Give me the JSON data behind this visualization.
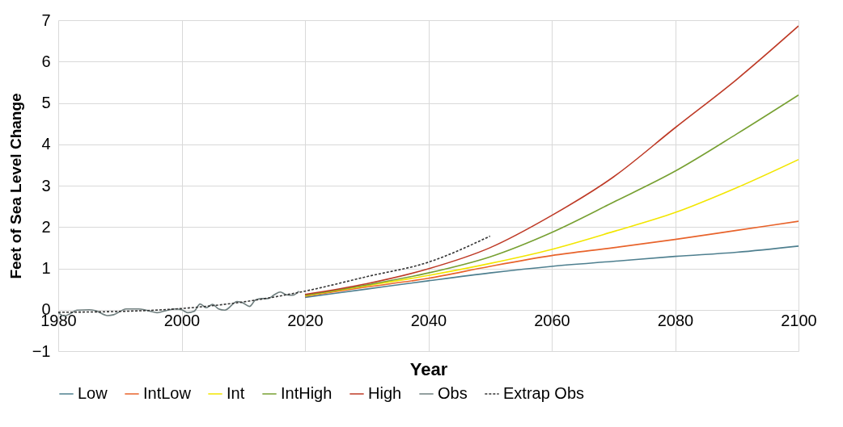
{
  "chart_data": {
    "type": "line",
    "xlabel": "Year",
    "ylabel": "Feet of Sea Level Change",
    "xlim": [
      1980,
      2100
    ],
    "ylim": [
      -1,
      7
    ],
    "xticks": [
      1980,
      2000,
      2020,
      2040,
      2060,
      2080,
      2100
    ],
    "yticks": [
      -1,
      0,
      1,
      2,
      3,
      4,
      5,
      6,
      7
    ],
    "grid": true,
    "legend": "bottom",
    "line_style": "solid",
    "marker": "none",
    "series": [
      {
        "name": "Low",
        "color": "#4e7f8f",
        "x": [
          2020,
          2030,
          2040,
          2050,
          2060,
          2070,
          2080,
          2090,
          2100
        ],
        "values": [
          0.3,
          0.5,
          0.7,
          0.89,
          1.05,
          1.17,
          1.29,
          1.39,
          1.54
        ]
      },
      {
        "name": "IntLow",
        "color": "#e8632b",
        "x": [
          2020,
          2030,
          2040,
          2050,
          2060,
          2070,
          2080,
          2090,
          2100
        ],
        "values": [
          0.33,
          0.55,
          0.76,
          1.05,
          1.31,
          1.5,
          1.7,
          1.92,
          2.14
        ]
      },
      {
        "name": "Int",
        "color": "#f2e600",
        "x": [
          2020,
          2030,
          2040,
          2050,
          2060,
          2070,
          2080,
          2090,
          2100
        ],
        "values": [
          0.34,
          0.58,
          0.83,
          1.12,
          1.46,
          1.89,
          2.35,
          2.95,
          3.63
        ]
      },
      {
        "name": "IntHigh",
        "color": "#77a032",
        "x": [
          2020,
          2030,
          2040,
          2050,
          2060,
          2070,
          2080,
          2090,
          2100
        ],
        "values": [
          0.35,
          0.6,
          0.89,
          1.28,
          1.87,
          2.6,
          3.35,
          4.25,
          5.19
        ]
      },
      {
        "name": "High",
        "color": "#be3a26",
        "x": [
          2020,
          2030,
          2040,
          2050,
          2060,
          2070,
          2080,
          2090,
          2100
        ],
        "values": [
          0.37,
          0.63,
          0.99,
          1.5,
          2.28,
          3.21,
          4.4,
          5.57,
          6.86
        ]
      },
      {
        "name": "Obs",
        "color": "#6f7f7f",
        "x": [
          1980,
          1981,
          1982,
          1983,
          1985,
          1986,
          1988,
          1989,
          1991,
          1993,
          1994,
          1995,
          1996,
          1997,
          1999,
          2000,
          2001,
          2002,
          2003,
          2004,
          2005,
          2006,
          2007,
          2009,
          2010,
          2011,
          2012,
          2013,
          2014,
          2015,
          2016,
          2017,
          2018,
          2019
        ],
        "values": [
          -0.07,
          -0.15,
          -0.09,
          -0.01,
          0,
          -0.02,
          -0.14,
          -0.12,
          0.02,
          0.02,
          0,
          -0.04,
          -0.07,
          -0.04,
          0.02,
          0,
          -0.07,
          -0.04,
          0.14,
          0.05,
          0.13,
          0.02,
          -0.01,
          0.2,
          0.16,
          0.08,
          0.24,
          0.27,
          0.27,
          0.36,
          0.43,
          0.36,
          0.35,
          0.45
        ]
      },
      {
        "name": "Extrap Obs",
        "color": "#333333",
        "line_style": "dashed",
        "x": [
          1980,
          1990,
          2000,
          2010,
          2020,
          2030,
          2040,
          2050
        ],
        "values": [
          -0.06,
          -0.04,
          0.03,
          0.19,
          0.45,
          0.8,
          1.15,
          1.78
        ]
      }
    ]
  }
}
